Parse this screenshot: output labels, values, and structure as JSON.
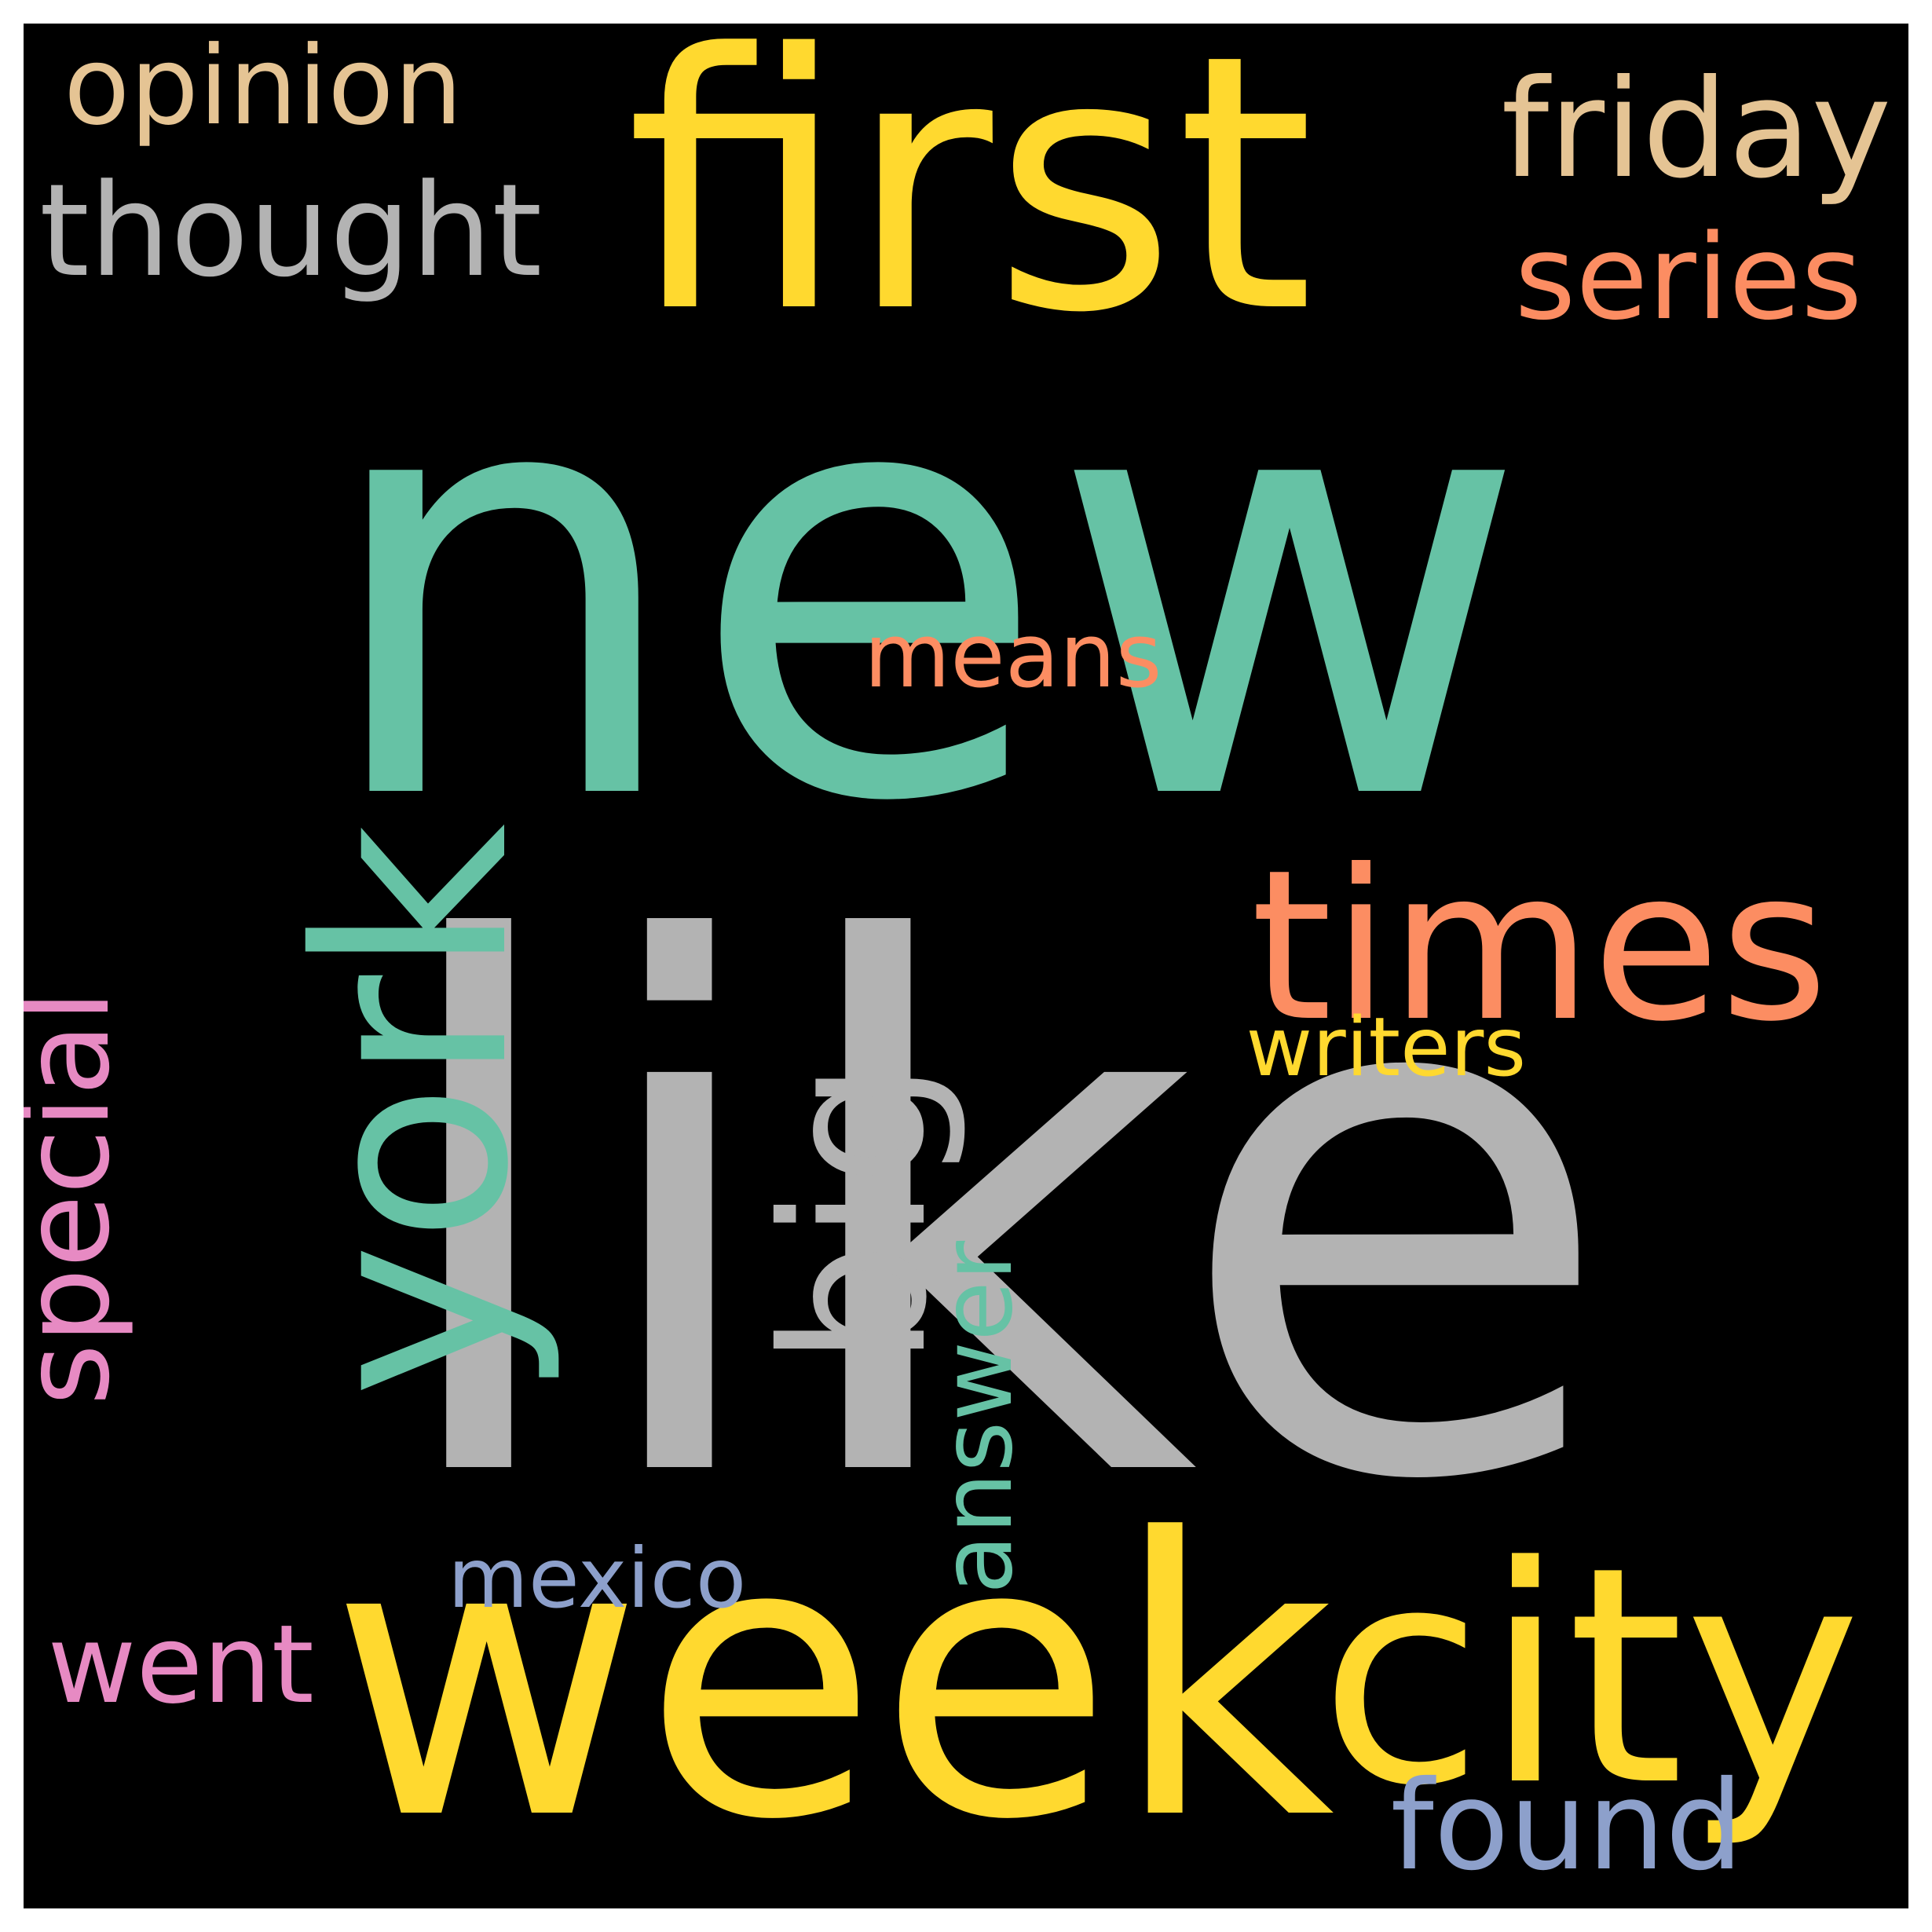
{
  "colors": {
    "background": "#000000",
    "frame": "#ffffff",
    "teal": "#66c2a5",
    "gray": "#b3b3b3",
    "yellow": "#ffd92f",
    "salmon": "#fc8d62",
    "tan": "#e5c494",
    "periwinkle": "#8da0cb",
    "pink": "#e78ac3"
  },
  "words": [
    {
      "text": "new",
      "color": "#66c2a5",
      "orientation": "horizontal"
    },
    {
      "text": "like",
      "color": "#b3b3b3",
      "orientation": "horizontal"
    },
    {
      "text": "first",
      "color": "#ffd92f",
      "orientation": "horizontal"
    },
    {
      "text": "week",
      "color": "#ffd92f",
      "orientation": "horizontal"
    },
    {
      "text": "york",
      "color": "#66c2a5",
      "orientation": "vertical"
    },
    {
      "text": "times",
      "color": "#fc8d62",
      "orientation": "horizontal"
    },
    {
      "text": "city",
      "color": "#ffd92f",
      "orientation": "horizontal"
    },
    {
      "text": "big",
      "color": "#b3b3b3",
      "orientation": "vertical"
    },
    {
      "text": "thought",
      "color": "#b3b3b3",
      "orientation": "horizontal"
    },
    {
      "text": "opinion",
      "color": "#e5c494",
      "orientation": "horizontal"
    },
    {
      "text": "friday",
      "color": "#e5c494",
      "orientation": "horizontal"
    },
    {
      "text": "series",
      "color": "#fc8d62",
      "orientation": "horizontal"
    },
    {
      "text": "means",
      "color": "#fc8d62",
      "orientation": "horizontal"
    },
    {
      "text": "writers",
      "color": "#ffd92f",
      "orientation": "horizontal"
    },
    {
      "text": "special",
      "color": "#e78ac3",
      "orientation": "vertical"
    },
    {
      "text": "answer",
      "color": "#66c2a5",
      "orientation": "vertical"
    },
    {
      "text": "mexico",
      "color": "#8da0cb",
      "orientation": "horizontal"
    },
    {
      "text": "went",
      "color": "#e78ac3",
      "orientation": "horizontal"
    },
    {
      "text": "found",
      "color": "#8da0cb",
      "orientation": "horizontal"
    }
  ]
}
